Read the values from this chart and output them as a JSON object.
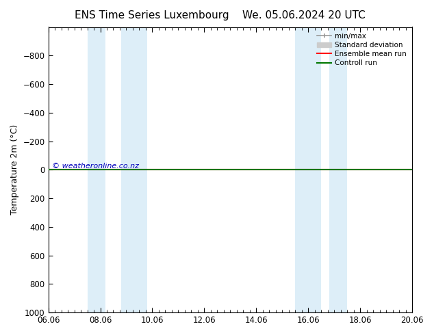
{
  "title_left": "ENS Time Series Luxembourg",
  "title_right": "We. 05.06.2024 20 UTC",
  "ylabel": "Temperature 2m (°C)",
  "xlim_days": [
    0,
    14
  ],
  "ylim": [
    -1000,
    1000
  ],
  "yticks": [
    -800,
    -600,
    -400,
    -200,
    0,
    200,
    400,
    600,
    800,
    1000
  ],
  "xtick_labels": [
    "06.06",
    "08.06",
    "10.06",
    "12.06",
    "14.06",
    "16.06",
    "18.06",
    "20.06"
  ],
  "xtick_positions": [
    0,
    2,
    4,
    6,
    8,
    10,
    12,
    14
  ],
  "blue_bands": [
    [
      1.5,
      2.2
    ],
    [
      2.8,
      3.8
    ],
    [
      9.5,
      10.5
    ],
    [
      10.8,
      11.5
    ]
  ],
  "blue_band_color": "#ddeef8",
  "control_run_y": 0,
  "ensemble_mean_y": 0,
  "background_color": "#ffffff",
  "plot_bg_color": "#ffffff",
  "copyright_text": "© weatheronline.co.nz",
  "copyright_color": "#0000bb",
  "legend_items": [
    {
      "label": "min/max",
      "color": "#999999",
      "lw": 1.2
    },
    {
      "label": "Standard deviation",
      "color": "#cccccc",
      "lw": 5
    },
    {
      "label": "Ensemble mean run",
      "color": "#ff0000",
      "lw": 1.5
    },
    {
      "label": "Controll run",
      "color": "#007700",
      "lw": 1.5
    }
  ],
  "title_fontsize": 11,
  "axis_fontsize": 9,
  "tick_fontsize": 8.5
}
